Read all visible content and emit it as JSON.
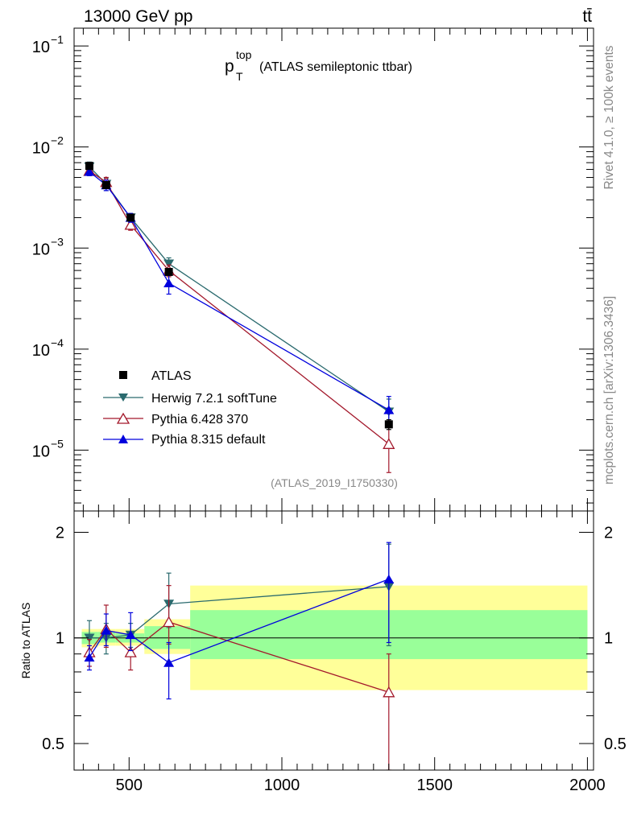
{
  "header": {
    "energy_label": "13000 GeV pp",
    "process_label": "tt̄"
  },
  "side_labels": {
    "rivet": "Rivet 4.1.0, ≥ 100k events",
    "mcplots": "mcplots.cern.ch [arXiv:1306.3436]"
  },
  "analysis_id": "(ATLAS_2019_I1750330)",
  "chart_data": {
    "type": "scatter",
    "title": {
      "main": "p",
      "sup": "top",
      "sub": "T",
      "rest": "(ATLAS semileptonic ttbar)"
    },
    "x": [
      370,
      425,
      505,
      630,
      1350
    ],
    "x_range": [
      320,
      2020
    ],
    "upper": {
      "scale": "log",
      "ylim": [
        2.5e-06,
        0.15
      ],
      "ytick_values": [
        1e-05,
        0.0001,
        0.001,
        0.01,
        0.1
      ],
      "ytick_labels": [
        {
          "base": "10",
          "exp": "−5"
        },
        {
          "base": "10",
          "exp": "−4"
        },
        {
          "base": "10",
          "exp": "−3"
        },
        {
          "base": "10",
          "exp": "−2"
        },
        {
          "base": "10",
          "exp": "−1"
        }
      ],
      "series": [
        {
          "name": "ATLAS",
          "marker": "square",
          "color": "#000000",
          "values": [
            0.0065,
            0.0042,
            0.002,
            0.00058,
            1.8e-05
          ],
          "err_low": [
            0.0003,
            0.0002,
            0.0001,
            3e-05,
            2e-06
          ],
          "err_high": [
            0.0003,
            0.0002,
            0.0001,
            3e-05,
            2e-06
          ]
        },
        {
          "name": "Herwig 7.2.1 softTune",
          "marker": "triangle-down",
          "color": "#2a6a6e",
          "values": [
            0.0064,
            0.0043,
            0.002,
            0.0007,
            2.4e-05
          ],
          "err_low": [
            0.0007,
            0.0006,
            0.0002,
            0.0001,
            7e-06
          ],
          "err_high": [
            0.0007,
            0.0006,
            0.0002,
            0.0001,
            8e-06
          ]
        },
        {
          "name": "Pythia 6.428 370",
          "marker": "triangle-open",
          "color": "#a3182b",
          "values": [
            0.0058,
            0.0045,
            0.0017,
            0.0006,
            1.15e-05
          ],
          "err_low": [
            0.0005,
            0.0005,
            0.0002,
            8e-05,
            5.5e-06
          ],
          "err_high": [
            0.0005,
            0.0005,
            0.0002,
            8e-05,
            5.5e-06
          ]
        },
        {
          "name": "Pythia 8.315 default",
          "marker": "triangle-up",
          "color": "#0000dd",
          "values": [
            0.0057,
            0.0042,
            0.002,
            0.00045,
            2.5e-05
          ],
          "err_low": [
            0.0005,
            0.0005,
            0.0002,
            0.0001,
            8e-06
          ],
          "err_high": [
            0.0005,
            0.0005,
            0.0002,
            0.0001,
            9e-06
          ]
        }
      ]
    },
    "ratio": {
      "ylabel": "Ratio to ATLAS",
      "ylim": [
        0.42,
        2.3
      ],
      "ytick_values": [
        0.5,
        1,
        2
      ],
      "ytick_labels": [
        "0.5",
        "1",
        "2"
      ],
      "bands": [
        {
          "x0": 345,
          "x1": 398,
          "inner": [
            0.96,
            1.04
          ],
          "outer": [
            0.94,
            1.06
          ]
        },
        {
          "x0": 398,
          "x1": 455,
          "inner": [
            0.97,
            1.04
          ],
          "outer": [
            0.95,
            1.06
          ]
        },
        {
          "x0": 455,
          "x1": 550,
          "inner": [
            0.97,
            1.03
          ],
          "outer": [
            0.95,
            1.06
          ]
        },
        {
          "x0": 550,
          "x1": 700,
          "inner": [
            0.93,
            1.08
          ],
          "outer": [
            0.9,
            1.13
          ]
        },
        {
          "x0": 700,
          "x1": 2000,
          "inner": [
            0.87,
            1.2
          ],
          "outer": [
            0.71,
            1.41
          ]
        }
      ],
      "series": [
        {
          "name": "Herwig 7.2.1 softTune",
          "values": [
            1.0,
            1.0,
            1.02,
            1.25,
            1.4
          ],
          "err_low": [
            0.12,
            0.1,
            0.08,
            0.18,
            0.45
          ],
          "err_high": [
            0.12,
            0.1,
            0.08,
            0.28,
            0.45
          ]
        },
        {
          "name": "Pythia 6.428 370",
          "values": [
            0.91,
            1.06,
            0.91,
            1.11,
            0.7
          ],
          "err_low": [
            0.08,
            0.12,
            0.1,
            0.15,
            0.3
          ],
          "err_high": [
            0.08,
            0.18,
            0.1,
            0.3,
            0.2
          ]
        },
        {
          "name": "Pythia 8.315 default",
          "values": [
            0.88,
            1.05,
            1.02,
            0.85,
            1.47
          ],
          "err_low": [
            0.07,
            0.1,
            0.1,
            0.18,
            0.5
          ],
          "err_high": [
            0.07,
            0.12,
            0.16,
            0.12,
            0.4
          ]
        }
      ]
    },
    "xtick_values": [
      500,
      1000,
      1500,
      2000
    ],
    "xtick_labels": [
      "500",
      "1000",
      "1500",
      "2000"
    ],
    "legend": {
      "location": "lower-left"
    },
    "band_colors": {
      "inner": "#99ff99",
      "outer": "#ffff99"
    }
  }
}
